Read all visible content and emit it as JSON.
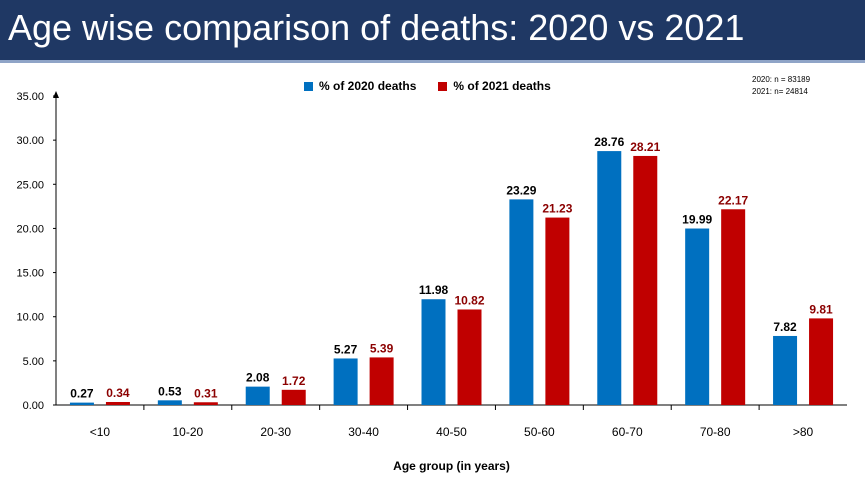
{
  "title": "Age wise comparison of deaths: 2020 vs 2021",
  "notes": [
    "2020: n = 83189",
    "2021: n= 24814"
  ],
  "colors": {
    "title_bar": "#1f3864",
    "series_2020": "#0070c0",
    "series_2021": "#c00000"
  },
  "chart_data": {
    "type": "bar",
    "xlabel": "Age group (in years)",
    "ylabel": "",
    "ylim": [
      0,
      35
    ],
    "yticks": [
      "0.00",
      "5.00",
      "10.00",
      "15.00",
      "20.00",
      "25.00",
      "30.00",
      "35.00"
    ],
    "categories": [
      "<10",
      "10-20",
      "20-30",
      "30-40",
      "40-50",
      "50-60",
      "60-70",
      "70-80",
      ">80"
    ],
    "series": [
      {
        "name": "% of 2020 deaths",
        "values": [
          0.27,
          0.53,
          2.08,
          5.27,
          11.98,
          23.29,
          28.76,
          19.99,
          7.82
        ],
        "labels": [
          "0.27",
          "0.53",
          "2.08",
          "5.27",
          "11.98",
          "23.29",
          "28.76",
          "19.99",
          "7.82"
        ]
      },
      {
        "name": "% of 2021 deaths",
        "values": [
          0.34,
          0.31,
          1.72,
          5.39,
          10.82,
          21.23,
          28.21,
          22.17,
          9.81
        ],
        "labels": [
          "0.34",
          "0.31",
          "1.72",
          "5.39",
          "10.82",
          "21.23",
          "28.21",
          "22.17",
          "9.81"
        ]
      }
    ],
    "legend": "top-center",
    "grid": false
  }
}
